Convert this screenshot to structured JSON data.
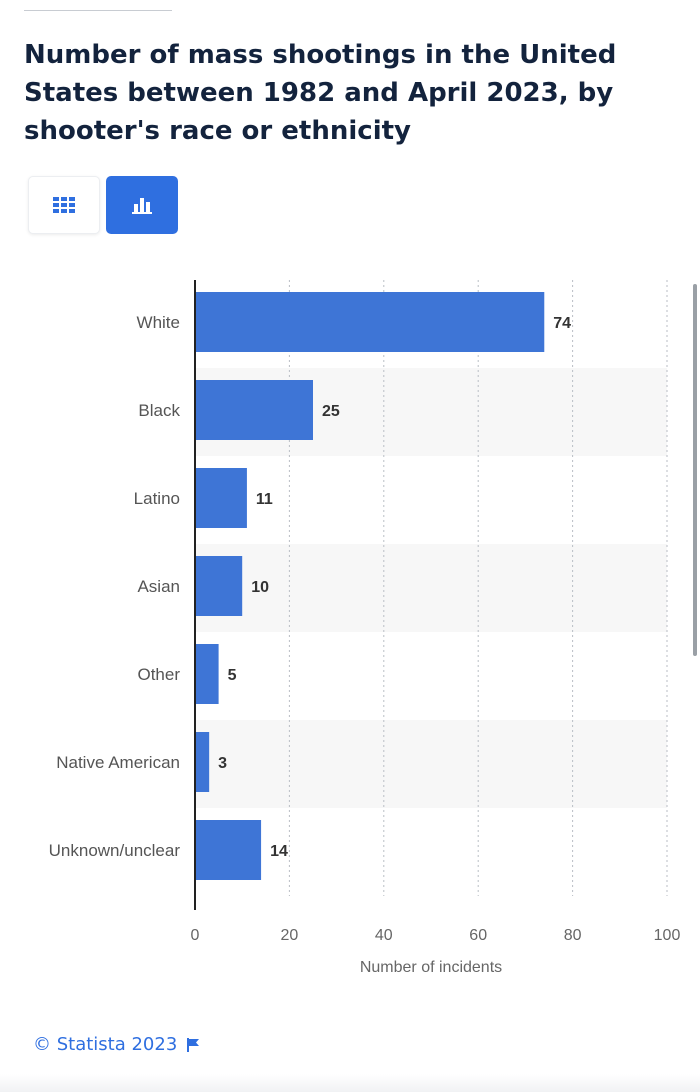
{
  "header": {
    "title": "Number of mass shootings in the United States between 1982 and April 2023, by shooter's race or ethnicity"
  },
  "view_toggle": {
    "table_icon": "grid-icon",
    "chart_icon": "bar-chart-icon",
    "active": "chart"
  },
  "colors": {
    "bar": "#3e75d6",
    "accent": "#2f6fe0",
    "title": "#13233d",
    "stripe": "#f7f7f7"
  },
  "chart_data": {
    "type": "bar",
    "orientation": "horizontal",
    "title": "Number of mass shootings in the United States between 1982 and April 2023, by shooter's race or ethnicity",
    "categories": [
      "White",
      "Black",
      "Latino",
      "Asian",
      "Other",
      "Native American",
      "Unknown/unclear"
    ],
    "values": [
      74,
      25,
      11,
      10,
      5,
      3,
      14
    ],
    "xlabel": "Number of incidents",
    "ylabel": "",
    "xlim": [
      0,
      100
    ],
    "xticks": [
      0,
      20,
      40,
      60,
      80,
      100
    ],
    "grid": true,
    "data_labels": true
  },
  "footer": {
    "copyright": "© Statista 2023",
    "flag_icon": "flag-icon"
  }
}
